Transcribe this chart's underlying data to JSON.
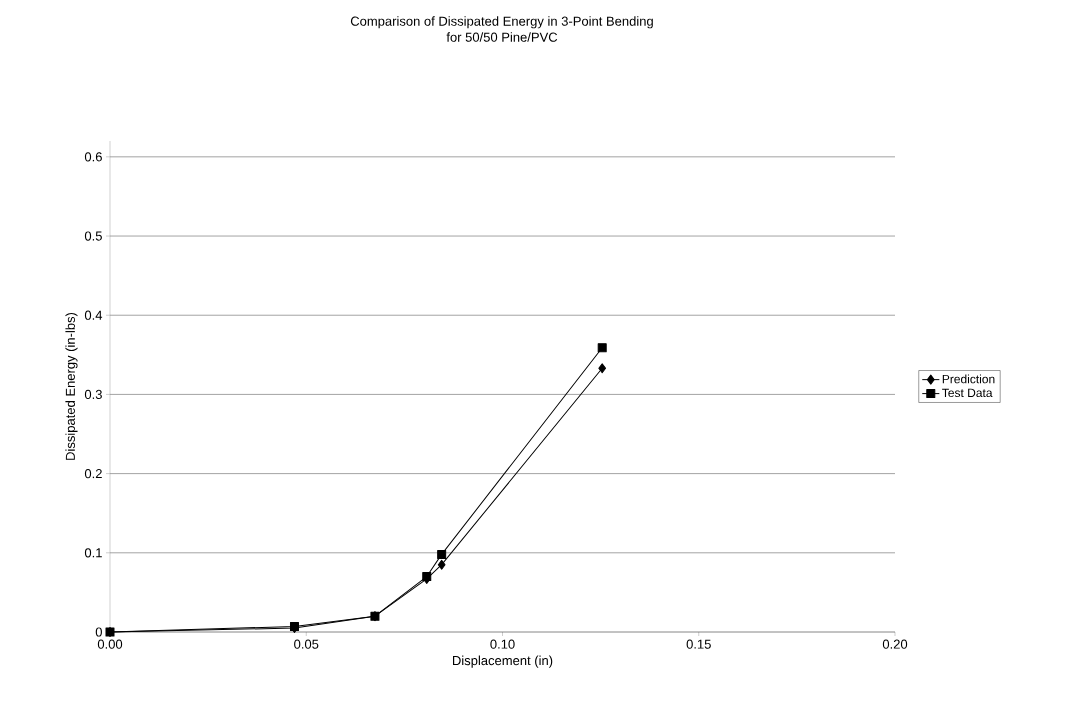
{
  "chart_data": {
    "type": "line",
    "title": "Comparison of Dissipated Energy in 3-Point Bending",
    "subtitle": "for 50/50 Pine/PVC",
    "xlabel": "Displacement (in)",
    "ylabel": "Dissipated Energy (in-lbs)",
    "xlim": [
      0,
      0.2
    ],
    "xticks": [
      {
        "value": 0,
        "label": "0.00"
      },
      {
        "value": 0.05,
        "label": "0.05"
      },
      {
        "value": 0.1,
        "label": "0.10"
      },
      {
        "value": 0.15,
        "label": "0.15"
      },
      {
        "value": 0.2,
        "label": "0.20"
      }
    ],
    "ylim": [
      0,
      0.62
    ],
    "yticks": [
      0,
      0.1,
      0.2,
      0.3,
      0.4,
      0.5,
      0.6
    ],
    "grid": "y",
    "legend": "right",
    "line_style": "solid",
    "series": [
      {
        "name": "Prediction",
        "color": "#000000",
        "marker": "diamond",
        "x": [
          0,
          0.047,
          0.0675,
          0.0807,
          0.0845,
          0.1254
        ],
        "values": [
          0,
          0.005,
          0.02,
          0.067,
          0.085,
          0.333
        ]
      },
      {
        "name": "Test Data",
        "color": "#000000",
        "marker": "square",
        "x": [
          0,
          0.047,
          0.0675,
          0.0807,
          0.0845,
          0.1254
        ],
        "values": [
          0,
          0.007,
          0.02,
          0.07,
          0.098,
          0.359
        ]
      }
    ]
  }
}
